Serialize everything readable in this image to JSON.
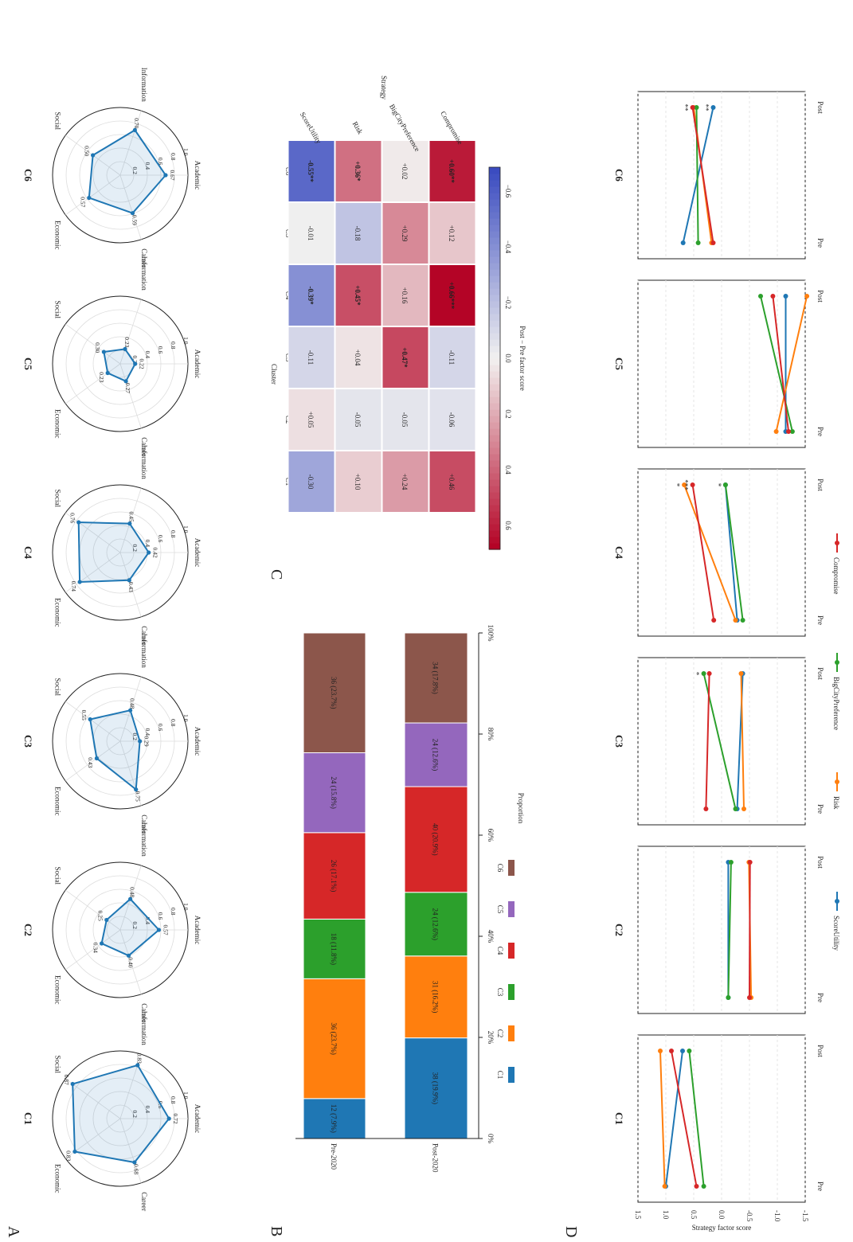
{
  "panels": {
    "A": "A",
    "B": "B",
    "C": "C",
    "D": "D"
  },
  "clusters": [
    "C1",
    "C2",
    "C3",
    "C4",
    "C5",
    "C6"
  ],
  "colors": {
    "C1": "#1f77b4",
    "C2": "#ff7f0e",
    "C3": "#2ca02c",
    "C4": "#d62728",
    "C5": "#9467bd",
    "C6": "#8c564b",
    "ScoreUtility": "#1f77b4",
    "Risk": "#ff7f0e",
    "BigCityPreference": "#2ca02c",
    "Compromise": "#d62728",
    "radar": "#1f77b4"
  },
  "chart_data": [
    {
      "type": "radar",
      "panel": "A",
      "axes": [
        "Academic",
        "Career",
        "Economic",
        "Social",
        "Information"
      ],
      "ticks": [
        "0.2",
        "0.4",
        "0.6",
        "0.8",
        "1.0"
      ],
      "rmax": 1.0,
      "series": [
        {
          "name": "C1",
          "values": [
            0.72,
            0.68,
            0.83,
            0.87,
            0.83
          ],
          "labels": [
            "0.72",
            "0.68",
            "0.83",
            "0.87",
            "0.83"
          ]
        },
        {
          "name": "C2",
          "values": [
            0.57,
            0.4,
            0.34,
            0.25,
            0.48
          ],
          "labels": [
            "0.57",
            "0.40",
            "0.34",
            "0.25",
            "0.48"
          ]
        },
        {
          "name": "C3",
          "values": [
            0.29,
            0.75,
            0.43,
            0.55,
            0.48
          ],
          "labels": [
            "0.29",
            "0.75",
            "0.43",
            "0.55",
            "0.48"
          ]
        },
        {
          "name": "C4",
          "values": [
            0.42,
            0.43,
            0.74,
            0.76,
            0.45
          ],
          "labels": [
            "0.42",
            "0.43",
            "0.74",
            "0.76",
            "0.45"
          ]
        },
        {
          "name": "C5",
          "values": [
            0.22,
            0.27,
            0.23,
            0.3,
            0.23
          ],
          "labels": [
            "0.22",
            "0.27",
            "0.23",
            "0.30",
            "0.23"
          ]
        },
        {
          "name": "C6",
          "values": [
            0.67,
            0.59,
            0.57,
            0.5,
            0.7
          ],
          "labels": [
            "0.67",
            "0.59",
            "0.57",
            "0.50",
            "0.70"
          ]
        }
      ]
    },
    {
      "type": "bar",
      "panel": "B",
      "stacked": true,
      "categories": [
        "Pre-2020",
        "Post-2020"
      ],
      "series": [
        {
          "name": "C1",
          "values": [
            7.9,
            19.9
          ],
          "labels": [
            "12 (7.9%)",
            "38 (19.9%)"
          ]
        },
        {
          "name": "C2",
          "values": [
            23.7,
            16.2
          ],
          "labels": [
            "36 (23.7%)",
            "31 (16.2%)"
          ]
        },
        {
          "name": "C3",
          "values": [
            11.8,
            12.6
          ],
          "labels": [
            "18 (11.8%)",
            "24 (12.6%)"
          ]
        },
        {
          "name": "C4",
          "values": [
            17.1,
            20.9
          ],
          "labels": [
            "26 (17.1%)",
            "40 (20.9%)"
          ]
        },
        {
          "name": "C5",
          "values": [
            15.8,
            12.6
          ],
          "labels": [
            "24 (15.8%)",
            "24 (12.6%)"
          ]
        },
        {
          "name": "C6",
          "values": [
            23.7,
            17.8
          ],
          "labels": [
            "36 (23.7%)",
            "34 (17.8%)"
          ]
        }
      ],
      "xticks": [
        "0%",
        "20%",
        "40%",
        "60%",
        "80%",
        "100%"
      ],
      "xlabel": "Proportion",
      "xlim": [
        0,
        100
      ]
    },
    {
      "type": "heatmap",
      "panel": "C",
      "rows": [
        "C1",
        "C2",
        "C3",
        "C4",
        "C5",
        "C6"
      ],
      "cols": [
        "ScoreUtility",
        "Risk",
        "BigCityPreference",
        "Compromise"
      ],
      "values": [
        [
          -0.3,
          0.1,
          0.24,
          0.46
        ],
        [
          0.05,
          -0.05,
          -0.05,
          -0.06
        ],
        [
          -0.11,
          0.04,
          0.47,
          -0.11
        ],
        [
          -0.39,
          0.45,
          0.16,
          0.66
        ],
        [
          -0.01,
          -0.18,
          0.29,
          0.12
        ],
        [
          -0.55,
          0.36,
          0.02,
          0.6
        ]
      ],
      "labels": [
        [
          "-0.30",
          "+0.10",
          "+0.24",
          "+0.46"
        ],
        [
          "+0.05",
          "-0.05",
          "-0.05",
          "-0.06"
        ],
        [
          "-0.11",
          "+0.04",
          "+0.47*",
          "-0.11"
        ],
        [
          "-0.39*",
          "+0.45*",
          "+0.16",
          "+0.66***"
        ],
        [
          "-0.01",
          "-0.18",
          "+0.29",
          "+0.12"
        ],
        [
          "-0.55**",
          "+0.36*",
          "+0.02",
          "+0.60**"
        ]
      ],
      "bold": [
        [
          false,
          false,
          false,
          false
        ],
        [
          false,
          false,
          false,
          false
        ],
        [
          false,
          false,
          true,
          false
        ],
        [
          true,
          true,
          false,
          true
        ],
        [
          false,
          false,
          false,
          false
        ],
        [
          true,
          true,
          false,
          true
        ]
      ],
      "xlabel": "Strategy",
      "ylabel": "Cluster",
      "colorbar_label": "Post − Pre factor score",
      "colorbar_ticks": [
        "0.6",
        "0.4",
        "0.2",
        "0.0",
        "−0.2",
        "−0.4",
        "−0.6"
      ],
      "vlim": [
        -0.66,
        0.66
      ]
    },
    {
      "type": "line",
      "panel": "D",
      "x": [
        "Pre",
        "Post"
      ],
      "ylabel": "Strategy factor score",
      "ylim": [
        -1.5,
        1.5
      ],
      "yticks": [
        "1.5",
        "1.0",
        "0.5",
        "0.0",
        "-0.5",
        "-1.0",
        "-1.5"
      ],
      "legend": [
        "ScoreUtility",
        "Risk",
        "BigCityPreference",
        "Compromise"
      ],
      "subplots": [
        {
          "name": "C1",
          "series": [
            {
              "name": "ScoreUtility",
              "values": [
                1.0,
                0.7
              ]
            },
            {
              "name": "Risk",
              "values": [
                1.02,
                1.1
              ]
            },
            {
              "name": "BigCityPreference",
              "values": [
                0.32,
                0.58
              ]
            },
            {
              "name": "Compromise",
              "values": [
                0.45,
                0.9
              ]
            }
          ],
          "stars": []
        },
        {
          "name": "C2",
          "series": [
            {
              "name": "ScoreUtility",
              "values": [
                -0.12,
                -0.12
              ]
            },
            {
              "name": "Risk",
              "values": [
                -0.53,
                -0.49
              ]
            },
            {
              "name": "BigCityPreference",
              "values": [
                -0.12,
                -0.17
              ]
            },
            {
              "name": "Compromise",
              "values": [
                -0.5,
                -0.51
              ]
            }
          ],
          "stars": []
        },
        {
          "name": "C3",
          "series": [
            {
              "name": "ScoreUtility",
              "values": [
                -0.28,
                -0.38
              ]
            },
            {
              "name": "Risk",
              "values": [
                -0.4,
                -0.35
              ]
            },
            {
              "name": "BigCityPreference",
              "values": [
                -0.25,
                0.32
              ]
            },
            {
              "name": "Compromise",
              "values": [
                0.28,
                0.22
              ]
            }
          ],
          "stars": [
            {
              "series": "BigCityPreference",
              "text": "*"
            }
          ]
        },
        {
          "name": "C4",
          "series": [
            {
              "name": "ScoreUtility",
              "values": [
                -0.28,
                -0.07
              ]
            },
            {
              "name": "Risk",
              "values": [
                -0.25,
                0.67
              ]
            },
            {
              "name": "BigCityPreference",
              "values": [
                -0.38,
                -0.07
              ]
            },
            {
              "name": "Compromise",
              "values": [
                0.14,
                0.52
              ]
            }
          ],
          "stars": [
            {
              "series": "ScoreUtility",
              "text": "*"
            },
            {
              "series": "Risk",
              "text": "*"
            },
            {
              "series": "Compromise",
              "text": "***"
            }
          ]
        },
        {
          "name": "C5",
          "series": [
            {
              "name": "ScoreUtility",
              "values": [
                -1.15,
                -1.15
              ]
            },
            {
              "name": "Risk",
              "values": [
                -0.98,
                -1.53
              ]
            },
            {
              "name": "BigCityPreference",
              "values": [
                -1.27,
                -0.7
              ]
            },
            {
              "name": "Compromise",
              "values": [
                -1.2,
                -0.92
              ]
            }
          ],
          "stars": []
        },
        {
          "name": "C6",
          "series": [
            {
              "name": "ScoreUtility",
              "values": [
                0.69,
                0.15
              ]
            },
            {
              "name": "Risk",
              "values": [
                0.18,
                0.5
              ]
            },
            {
              "name": "BigCityPreference",
              "values": [
                0.42,
                0.45
              ]
            },
            {
              "name": "Compromise",
              "values": [
                0.15,
                0.52
              ]
            }
          ],
          "stars": [
            {
              "series": "ScoreUtility",
              "text": "**"
            },
            {
              "series": "Compromise",
              "text": "**"
            }
          ]
        }
      ]
    }
  ]
}
